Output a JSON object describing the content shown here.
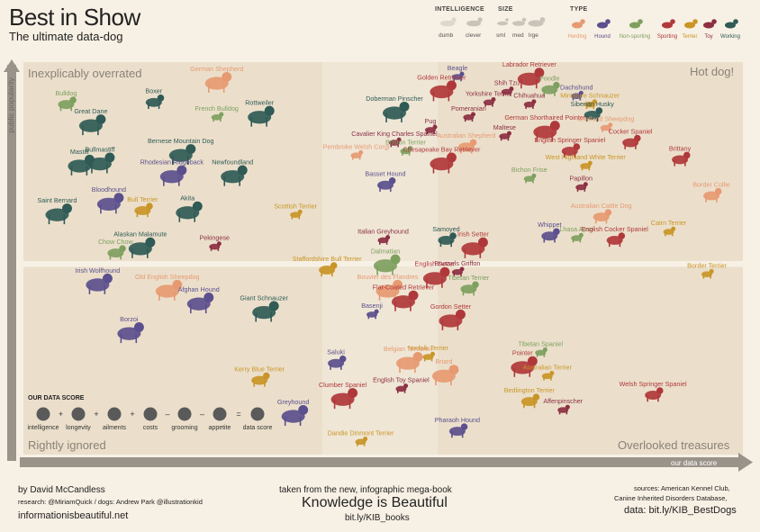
{
  "header": {
    "title": "Best in Show",
    "subtitle": "The ultimate data-dog"
  },
  "legend": {
    "intelligence_title": "INTELLIGENCE",
    "intelligence_items": [
      "dumb",
      "clever"
    ],
    "size_title": "SIZE",
    "size_items": [
      "sml",
      "med",
      "lrge"
    ],
    "type_title": "TYPE",
    "type_items": [
      {
        "label": "Herding",
        "color": "#e79a72"
      },
      {
        "label": "Hound",
        "color": "#5b4f8d"
      },
      {
        "label": "Non-sporting",
        "color": "#7ea05f"
      },
      {
        "label": "Sporting",
        "color": "#b0383a"
      },
      {
        "label": "Terrier",
        "color": "#c99526"
      },
      {
        "label": "Toy",
        "color": "#8c2f42"
      },
      {
        "label": "Working",
        "color": "#2f5a55"
      }
    ]
  },
  "quadrants": {
    "top_left": "Inexplicably overrated",
    "top_right": "Hot dog!",
    "bottom_left": "Rightly ignored",
    "bottom_right": "Overlooked treasures"
  },
  "axes": {
    "y_label": "public popularity",
    "x_label": "our data score"
  },
  "data_score": {
    "title": "OUR DATA SCORE",
    "items": [
      "intelligence",
      "longevity",
      "ailments",
      "costs",
      "grooming",
      "appetite",
      "data score"
    ],
    "operators": [
      "+",
      "+",
      "+",
      "–",
      "–",
      "="
    ]
  },
  "footer": {
    "author": "by David McCandless",
    "research": "research: @MiriamQuick / dogs: Andrew Park @illustrationkid",
    "site": "informationisbeautiful.net",
    "taken": "taken from the new, infographic mega-book",
    "book": "Knowledge is Beautiful",
    "book_link": "bit.ly/KIB_books",
    "sources_1": "sources: American Kennel Club,",
    "sources_2": "Canine Inherited Disorders Database,",
    "data_link": "data: bit.ly/KIB_BestDogs"
  },
  "chart_data": {
    "type": "scatter",
    "xlabel": "our data score",
    "ylabel": "public popularity",
    "points": [
      {
        "name": "Bulldog",
        "type": "Non-sporting",
        "size": "med",
        "x": 0.99,
        "y": 3.6
      },
      {
        "name": "Boxer",
        "type": "Working",
        "size": "med",
        "x": 1.38,
        "y": 3.61
      },
      {
        "name": "German Shepherd",
        "type": "Herding",
        "size": "lrge",
        "x": 1.66,
        "y": 3.7
      },
      {
        "name": "French Bulldog",
        "type": "Non-sporting",
        "size": "sml",
        "x": 1.66,
        "y": 3.54
      },
      {
        "name": "Great Dane",
        "type": "Working",
        "size": "lrge",
        "x": 1.1,
        "y": 3.5
      },
      {
        "name": "Rottweiler",
        "type": "Working",
        "size": "lrge",
        "x": 1.85,
        "y": 3.54
      },
      {
        "name": "Bernese Mountain Dog",
        "type": "Working",
        "size": "lrge",
        "x": 1.5,
        "y": 3.36
      },
      {
        "name": "Bullmastiff",
        "type": "Working",
        "size": "lrge",
        "x": 1.14,
        "y": 3.32
      },
      {
        "name": "Mastiff",
        "type": "Working",
        "size": "lrge",
        "x": 1.05,
        "y": 3.31
      },
      {
        "name": "Rhodesian Ridgeback",
        "type": "Hound",
        "size": "lrge",
        "x": 1.46,
        "y": 3.26
      },
      {
        "name": "Newfoundland",
        "type": "Working",
        "size": "lrge",
        "x": 1.73,
        "y": 3.26
      },
      {
        "name": "Saint Bernard",
        "type": "Working",
        "size": "lrge",
        "x": 0.95,
        "y": 3.08
      },
      {
        "name": "Bloodhound",
        "type": "Hound",
        "size": "lrge",
        "x": 1.18,
        "y": 3.13
      },
      {
        "name": "Bull Terrier",
        "type": "Terrier",
        "size": "med",
        "x": 1.33,
        "y": 3.1
      },
      {
        "name": "Akita",
        "type": "Working",
        "size": "lrge",
        "x": 1.53,
        "y": 3.09
      },
      {
        "name": "Alaskan Malamute",
        "type": "Working",
        "size": "lrge",
        "x": 1.32,
        "y": 2.92
      },
      {
        "name": "Chow Chow",
        "type": "Non-sporting",
        "size": "med",
        "x": 1.21,
        "y": 2.9
      },
      {
        "name": "Pekingese",
        "type": "Toy",
        "size": "sml",
        "x": 1.65,
        "y": 2.93
      },
      {
        "name": "Scottish Terrier",
        "type": "Terrier",
        "size": "sml",
        "x": 2.01,
        "y": 3.08
      },
      {
        "name": "Doberman Pinscher",
        "type": "Working",
        "size": "lrge",
        "x": 2.45,
        "y": 3.56
      },
      {
        "name": "Cavalier King Charles Spaniel",
        "type": "Toy",
        "size": "sml",
        "x": 2.45,
        "y": 3.42
      },
      {
        "name": "Pembroke Welsh Corgi",
        "type": "Herding",
        "size": "sml",
        "x": 2.28,
        "y": 3.36
      },
      {
        "name": "Boston Terrier",
        "type": "Non-sporting",
        "size": "sml",
        "x": 2.5,
        "y": 3.38
      },
      {
        "name": "Basset Hound",
        "type": "Hound",
        "size": "med",
        "x": 2.41,
        "y": 3.22
      },
      {
        "name": "Beagle",
        "type": "Hound",
        "size": "sml",
        "x": 2.73,
        "y": 3.73
      },
      {
        "name": "Golden Retriever",
        "type": "Sporting",
        "size": "lrge",
        "x": 2.66,
        "y": 3.66
      },
      {
        "name": "Labrador Retriever",
        "type": "Sporting",
        "size": "lrge",
        "x": 3.05,
        "y": 3.72
      },
      {
        "name": "Shih Tzu",
        "type": "Toy",
        "size": "sml",
        "x": 2.95,
        "y": 3.66
      },
      {
        "name": "Yorkshire Terrier",
        "type": "Toy",
        "size": "sml",
        "x": 2.87,
        "y": 3.61
      },
      {
        "name": "Poodle",
        "type": "Non-sporting",
        "size": "med",
        "x": 3.14,
        "y": 3.67
      },
      {
        "name": "Dachshund",
        "type": "Hound",
        "size": "sml",
        "x": 3.26,
        "y": 3.64
      },
      {
        "name": "Chihuahua",
        "type": "Toy",
        "size": "sml",
        "x": 3.05,
        "y": 3.6
      },
      {
        "name": "Miniature Schnauzer",
        "type": "Terrier",
        "size": "sml",
        "x": 3.32,
        "y": 3.6
      },
      {
        "name": "Siberian Husky",
        "type": "Working",
        "size": "med",
        "x": 3.33,
        "y": 3.55
      },
      {
        "name": "Pomeranian",
        "type": "Toy",
        "size": "sml",
        "x": 2.78,
        "y": 3.54
      },
      {
        "name": "Pug",
        "type": "Toy",
        "size": "sml",
        "x": 2.61,
        "y": 3.48
      },
      {
        "name": "Maltese",
        "type": "Toy",
        "size": "sml",
        "x": 2.94,
        "y": 3.45
      },
      {
        "name": "German Shorthaired Pointer",
        "type": "Sporting",
        "size": "lrge",
        "x": 3.12,
        "y": 3.47
      },
      {
        "name": "Shetland Sheepdog",
        "type": "Herding",
        "size": "sml",
        "x": 3.39,
        "y": 3.49
      },
      {
        "name": "Cocker Spaniel",
        "type": "Sporting",
        "size": "med",
        "x": 3.5,
        "y": 3.42
      },
      {
        "name": "English Springer Spaniel",
        "type": "Sporting",
        "size": "med",
        "x": 3.23,
        "y": 3.38
      },
      {
        "name": "Australian Shepherd",
        "type": "Herding",
        "size": "med",
        "x": 2.77,
        "y": 3.4
      },
      {
        "name": "Chesapeake Bay Retriever",
        "type": "Sporting",
        "size": "lrge",
        "x": 2.66,
        "y": 3.32
      },
      {
        "name": "West Highland White Terrier",
        "type": "Terrier",
        "size": "sml",
        "x": 3.3,
        "y": 3.31
      },
      {
        "name": "Brittany",
        "type": "Sporting",
        "size": "med",
        "x": 3.72,
        "y": 3.34
      },
      {
        "name": "Bichon Frise",
        "type": "Non-sporting",
        "size": "sml",
        "x": 3.05,
        "y": 3.25
      },
      {
        "name": "Papillon",
        "type": "Toy",
        "size": "sml",
        "x": 3.28,
        "y": 3.21
      },
      {
        "name": "Border Collie",
        "type": "Herding",
        "size": "med",
        "x": 3.86,
        "y": 3.17
      },
      {
        "name": "Italian Greyhound",
        "type": "Toy",
        "size": "sml",
        "x": 2.4,
        "y": 2.96
      },
      {
        "name": "Samoyed",
        "type": "Working",
        "size": "med",
        "x": 2.68,
        "y": 2.96
      },
      {
        "name": "Irish Setter",
        "type": "Sporting",
        "size": "lrge",
        "x": 2.8,
        "y": 2.92
      },
      {
        "name": "Australian Cattle Dog",
        "type": "Herding",
        "size": "med",
        "x": 3.37,
        "y": 3.07
      },
      {
        "name": "Whippet",
        "type": "Hound",
        "size": "med",
        "x": 3.14,
        "y": 2.98
      },
      {
        "name": "Lhasa Apso",
        "type": "Non-sporting",
        "size": "sml",
        "x": 3.26,
        "y": 2.97
      },
      {
        "name": "English Cocker Spaniel",
        "type": "Sporting",
        "size": "med",
        "x": 3.43,
        "y": 2.96
      },
      {
        "name": "Cairn Terrier",
        "type": "Terrier",
        "size": "sml",
        "x": 3.67,
        "y": 3.0
      },
      {
        "name": "Staffordshire Bull Terrier",
        "type": "Terrier",
        "size": "med",
        "x": 2.15,
        "y": 2.82
      },
      {
        "name": "Dalmatian",
        "type": "Non-sporting",
        "size": "lrge",
        "x": 2.41,
        "y": 2.84
      },
      {
        "name": "English Setter",
        "type": "Sporting",
        "size": "lrge",
        "x": 2.63,
        "y": 2.78
      },
      {
        "name": "Brussels Griffon",
        "type": "Toy",
        "size": "sml",
        "x": 2.73,
        "y": 2.81
      },
      {
        "name": "Bouvier des Flandres",
        "type": "Herding",
        "size": "lrge",
        "x": 2.42,
        "y": 2.72
      },
      {
        "name": "Tibetan Terrier",
        "type": "Non-sporting",
        "size": "med",
        "x": 2.78,
        "y": 2.73
      },
      {
        "name": "Flat-Coated Retriever",
        "type": "Sporting",
        "size": "lrge",
        "x": 2.49,
        "y": 2.67
      },
      {
        "name": "Gordon Setter",
        "type": "Sporting",
        "size": "lrge",
        "x": 2.7,
        "y": 2.58
      },
      {
        "name": "Border Terrier",
        "type": "Terrier",
        "size": "sml",
        "x": 3.84,
        "y": 2.8
      },
      {
        "name": "Irish Wolfhound",
        "type": "Hound",
        "size": "lrge",
        "x": 1.13,
        "y": 2.75
      },
      {
        "name": "Old English Sheepdog",
        "type": "Herding",
        "size": "lrge",
        "x": 1.44,
        "y": 2.72
      },
      {
        "name": "Afghan Hound",
        "type": "Hound",
        "size": "lrge",
        "x": 1.58,
        "y": 2.66
      },
      {
        "name": "Giant Schnauzer",
        "type": "Working",
        "size": "lrge",
        "x": 1.87,
        "y": 2.62
      },
      {
        "name": "Basenji",
        "type": "Hound",
        "size": "sml",
        "x": 2.35,
        "y": 2.61
      },
      {
        "name": "Borzoi",
        "type": "Hound",
        "size": "lrge",
        "x": 1.27,
        "y": 2.52
      },
      {
        "name": "Saluki",
        "type": "Hound",
        "size": "med",
        "x": 2.19,
        "y": 2.38
      },
      {
        "name": "Belgian Tervuren",
        "type": "Herding",
        "size": "lrge",
        "x": 2.51,
        "y": 2.38
      },
      {
        "name": "Norfolk Terrier",
        "type": "Terrier",
        "size": "sml",
        "x": 2.6,
        "y": 2.41
      },
      {
        "name": "Briard",
        "type": "Herding",
        "size": "lrge",
        "x": 2.67,
        "y": 2.32
      },
      {
        "name": "Tibetan Spaniel",
        "type": "Non-sporting",
        "size": "sml",
        "x": 3.1,
        "y": 2.43
      },
      {
        "name": "Pointer",
        "type": "Sporting",
        "size": "lrge",
        "x": 3.02,
        "y": 2.36
      },
      {
        "name": "Australian Terrier",
        "type": "Terrier",
        "size": "sml",
        "x": 3.13,
        "y": 2.32
      },
      {
        "name": "Kerry Blue Terrier",
        "type": "Terrier",
        "size": "med",
        "x": 1.85,
        "y": 2.3
      },
      {
        "name": "English Toy Spaniel",
        "type": "Toy",
        "size": "sml",
        "x": 2.48,
        "y": 2.26
      },
      {
        "name": "Clumber Spaniel",
        "type": "Sporting",
        "size": "lrge",
        "x": 2.22,
        "y": 2.21
      },
      {
        "name": "Bedlington Terrier",
        "type": "Terrier",
        "size": "med",
        "x": 3.05,
        "y": 2.2
      },
      {
        "name": "Affenpinscher",
        "type": "Toy",
        "size": "sml",
        "x": 3.2,
        "y": 2.16
      },
      {
        "name": "Welsh Springer Spaniel",
        "type": "Sporting",
        "size": "med",
        "x": 3.6,
        "y": 2.23
      },
      {
        "name": "Greyhound",
        "type": "Hound",
        "size": "lrge",
        "x": 2.0,
        "y": 2.13
      },
      {
        "name": "Dandie Dinmont Terrier",
        "type": "Terrier",
        "size": "sml",
        "x": 2.3,
        "y": 2.01
      },
      {
        "name": "Pharaoh Hound",
        "type": "Hound",
        "size": "med",
        "x": 2.73,
        "y": 2.06
      }
    ]
  }
}
